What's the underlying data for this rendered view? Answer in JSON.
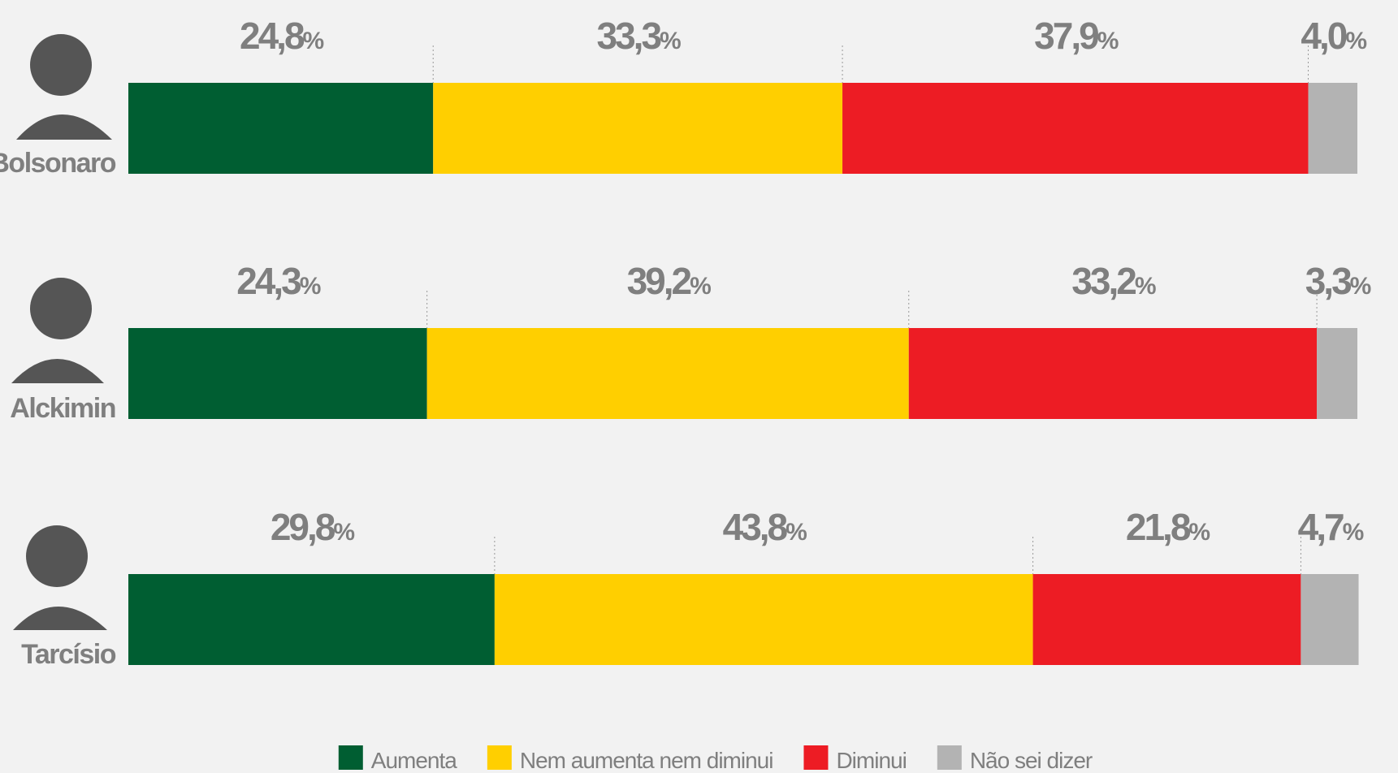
{
  "chart_data": {
    "type": "stacked-bar-horizontal",
    "categories": [
      "Bolsonaro",
      "Alckimin",
      "Tarcísio"
    ],
    "xlim": [
      0,
      100
    ],
    "legend": "bottom",
    "series": [
      {
        "name": "Aumenta",
        "color": "#005e32",
        "values": [
          24.8,
          24.3,
          29.8
        ],
        "value_labels": [
          "24,8%",
          "24,3%",
          "29,8%"
        ]
      },
      {
        "name": "Nem aumenta nem diminui",
        "color": "#ffcf00",
        "values": [
          33.3,
          39.2,
          43.8
        ],
        "value_labels": [
          "33,3%",
          "39,2%",
          "43,8%"
        ]
      },
      {
        "name": "Diminui",
        "color": "#ed1c24",
        "values": [
          37.9,
          33.2,
          21.8
        ],
        "value_labels": [
          "37,9%",
          "33,2%",
          "21,8%"
        ]
      },
      {
        "name": "Não sei dizer",
        "color": "#b3b3b3",
        "values": [
          4.0,
          3.3,
          4.7
        ],
        "value_labels": [
          "4,0%",
          "3,3%",
          "4,7%"
        ]
      }
    ]
  }
}
